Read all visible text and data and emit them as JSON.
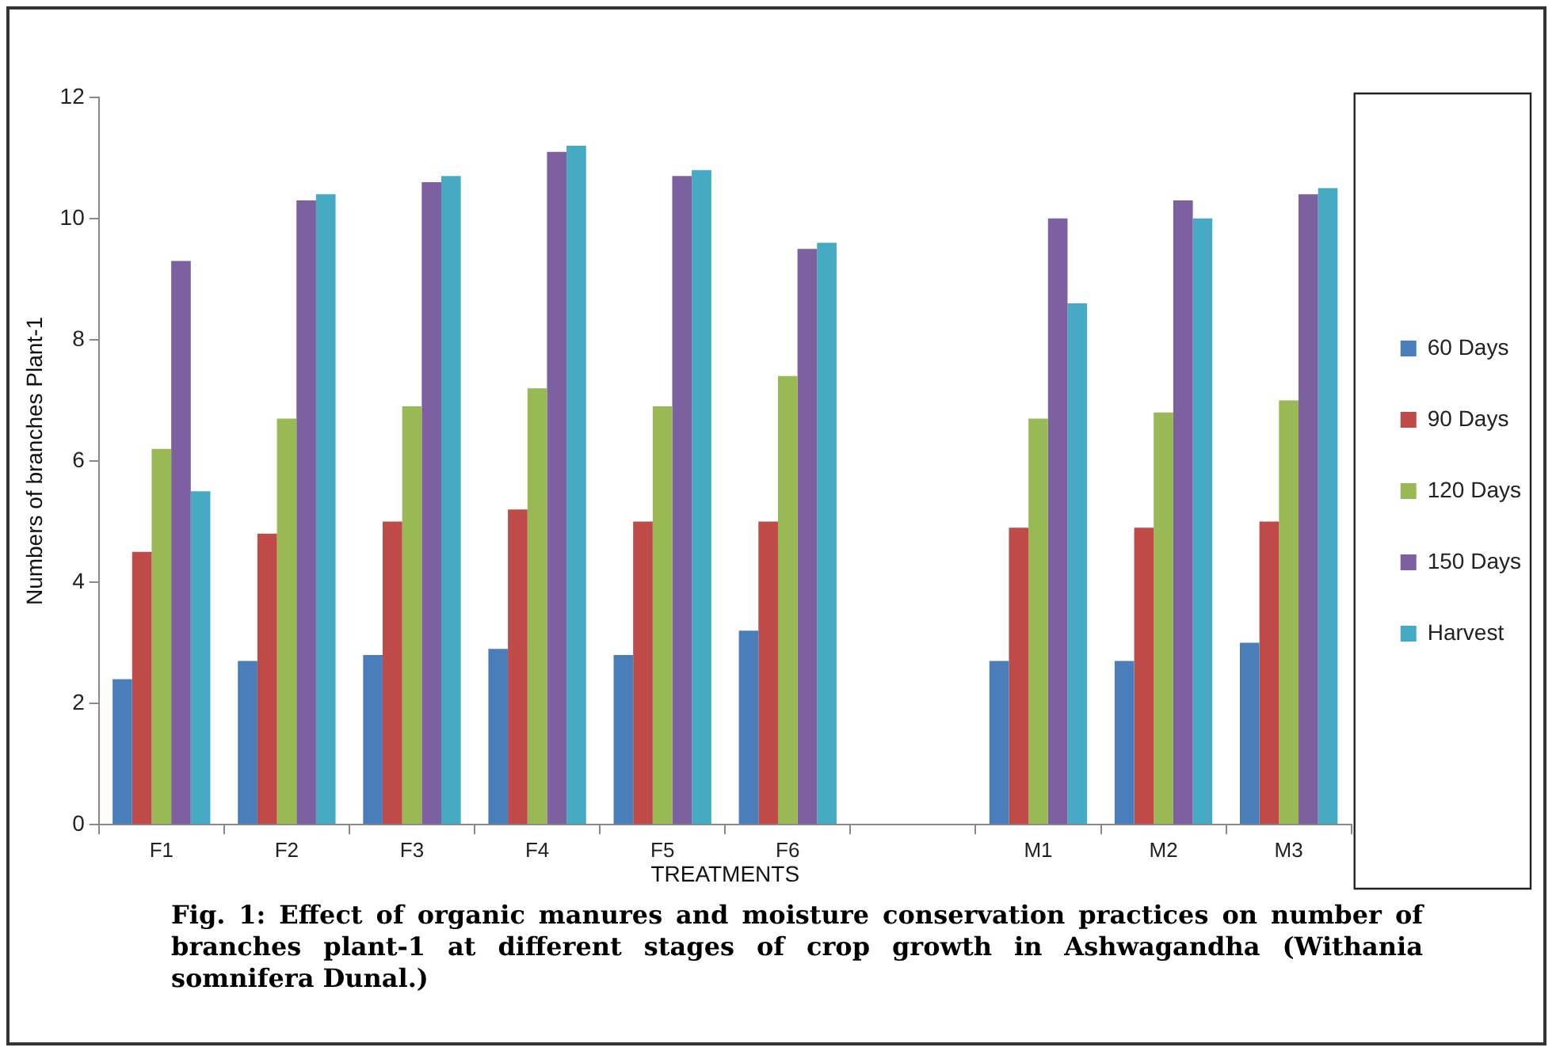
{
  "chart_data": {
    "type": "bar",
    "xlabel": "TREATMENTS",
    "ylabel": "Numbers of branches Plant-1",
    "categories": [
      "F1",
      "F2",
      "F3",
      "F4",
      "F5",
      "F6",
      null,
      "M1",
      "M2",
      "M3"
    ],
    "series": [
      {
        "name": "60 Days",
        "color": "#4a7ebb",
        "values": [
          2.4,
          2.7,
          2.8,
          2.9,
          2.8,
          3.2,
          null,
          2.7,
          2.7,
          3.0
        ]
      },
      {
        "name": "90 Days",
        "color": "#be4b48",
        "values": [
          4.5,
          4.8,
          5.0,
          5.2,
          5.0,
          5.0,
          null,
          4.9,
          4.9,
          5.0
        ]
      },
      {
        "name": "120 Days",
        "color": "#98b954",
        "values": [
          6.2,
          6.7,
          6.9,
          7.2,
          6.9,
          7.4,
          null,
          6.7,
          6.8,
          7.0
        ]
      },
      {
        "name": "150 Days",
        "color": "#7d60a0",
        "values": [
          9.3,
          10.3,
          10.6,
          11.1,
          10.7,
          9.5,
          null,
          10.0,
          10.3,
          10.4
        ]
      },
      {
        "name": "Harvest",
        "color": "#46aac5",
        "values": [
          5.5,
          10.4,
          10.7,
          11.2,
          10.8,
          9.6,
          null,
          8.6,
          10.0,
          10.5
        ]
      }
    ],
    "ylim": [
      0,
      12
    ],
    "yticks": [
      0,
      2,
      4,
      6,
      8,
      10,
      12
    ],
    "grid": false,
    "legend": "right",
    "annotations": [
      "Fig. 1: Effect of organic manures and moisture conservation  practices on number of branches plant-1 at different stages of crop growth in Ashwagandha (Withania somnifera Dunal.)"
    ]
  }
}
